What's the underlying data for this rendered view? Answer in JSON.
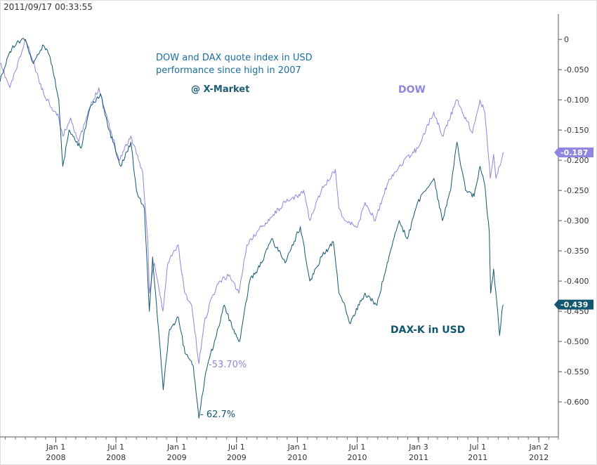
{
  "timestamp": "2011/09/17 00:33:55",
  "chart_data": {
    "type": "line",
    "title": "DOW and DAX quote index in USD",
    "subtitle": "performance since high in 2007",
    "brand": "@ X-Market",
    "y_ticks": [
      "0",
      "-0.050",
      "-0.100",
      "-0.150",
      "-0.200",
      "-0.250",
      "-0.300",
      "-0.350",
      "-0.400",
      "-0.450",
      "-0.500",
      "-0.550",
      "-0.600"
    ],
    "y_tick_values": [
      0,
      -0.05,
      -0.1,
      -0.15,
      -0.2,
      -0.25,
      -0.3,
      -0.35,
      -0.4,
      -0.45,
      -0.5,
      -0.55,
      -0.6
    ],
    "ylim": [
      -0.658,
      0.042
    ],
    "x_ticks": [
      {
        "line1": "Jan 1",
        "line2": "2008",
        "date": "2008-01-01"
      },
      {
        "line1": "Jul 1",
        "line2": "2008",
        "date": "2008-07-01"
      },
      {
        "line1": "Jan 1",
        "line2": "2009",
        "date": "2009-01-01"
      },
      {
        "line1": "Jul 1",
        "line2": "2009",
        "date": "2009-07-01"
      },
      {
        "line1": "Jan 1",
        "line2": "2010",
        "date": "2010-01-01"
      },
      {
        "line1": "Jul 1",
        "line2": "2010",
        "date": "2010-07-01"
      },
      {
        "line1": "Jan 3",
        "line2": "2011",
        "date": "2011-01-03"
      },
      {
        "line1": "Jul 1",
        "line2": "2011",
        "date": "2011-07-01"
      },
      {
        "line1": "Jan 2",
        "line2": "2012",
        "date": "2012-01-02"
      }
    ],
    "xlim": [
      "2007-07-16",
      "2012-03-01"
    ],
    "grid": false,
    "series": [
      {
        "name": "DOW",
        "color": "#8e86e0",
        "last_value_label": "-0.187",
        "points": [
          [
            "2007-07-16",
            -0.04
          ],
          [
            "2007-08-15",
            -0.08
          ],
          [
            "2007-10-01",
            -0.002
          ],
          [
            "2007-10-20",
            -0.03
          ],
          [
            "2007-11-25",
            -0.09
          ],
          [
            "2008-01-10",
            -0.13
          ],
          [
            "2008-01-22",
            -0.16
          ],
          [
            "2008-02-15",
            -0.13
          ],
          [
            "2008-03-10",
            -0.17
          ],
          [
            "2008-04-15",
            -0.11
          ],
          [
            "2008-05-10",
            -0.08
          ],
          [
            "2008-05-25",
            -0.11
          ],
          [
            "2008-06-15",
            -0.15
          ],
          [
            "2008-07-10",
            -0.2
          ],
          [
            "2008-08-15",
            -0.16
          ],
          [
            "2008-09-01",
            -0.19
          ],
          [
            "2008-09-20",
            -0.22
          ],
          [
            "2008-10-05",
            -0.33
          ],
          [
            "2008-10-10",
            -0.42
          ],
          [
            "2008-10-25",
            -0.37
          ],
          [
            "2008-11-20",
            -0.45
          ],
          [
            "2008-12-05",
            -0.37
          ],
          [
            "2009-01-05",
            -0.34
          ],
          [
            "2009-01-25",
            -0.42
          ],
          [
            "2009-02-15",
            -0.44
          ],
          [
            "2009-03-09",
            -0.537
          ],
          [
            "2009-03-25",
            -0.47
          ],
          [
            "2009-04-15",
            -0.43
          ],
          [
            "2009-05-10",
            -0.4
          ],
          [
            "2009-06-10",
            -0.39
          ],
          [
            "2009-07-08",
            -0.42
          ],
          [
            "2009-08-01",
            -0.34
          ],
          [
            "2009-09-15",
            -0.31
          ],
          [
            "2009-10-20",
            -0.29
          ],
          [
            "2009-11-25",
            -0.27
          ],
          [
            "2009-12-31",
            -0.26
          ],
          [
            "2010-01-20",
            -0.25
          ],
          [
            "2010-02-08",
            -0.3
          ],
          [
            "2010-03-15",
            -0.25
          ],
          [
            "2010-04-26",
            -0.215
          ],
          [
            "2010-05-07",
            -0.28
          ],
          [
            "2010-05-25",
            -0.3
          ],
          [
            "2010-07-02",
            -0.31
          ],
          [
            "2010-07-25",
            -0.27
          ],
          [
            "2010-08-25",
            -0.3
          ],
          [
            "2010-09-30",
            -0.24
          ],
          [
            "2010-11-05",
            -0.21
          ],
          [
            "2010-12-31",
            -0.18
          ],
          [
            "2011-02-18",
            -0.12
          ],
          [
            "2011-03-16",
            -0.16
          ],
          [
            "2011-04-29",
            -0.1
          ],
          [
            "2011-06-15",
            -0.155
          ],
          [
            "2011-07-08",
            -0.1
          ],
          [
            "2011-07-22",
            -0.12
          ],
          [
            "2011-08-08",
            -0.23
          ],
          [
            "2011-08-18",
            -0.19
          ],
          [
            "2011-08-25",
            -0.23
          ],
          [
            "2011-09-05",
            -0.21
          ],
          [
            "2011-09-16",
            -0.187
          ]
        ]
      },
      {
        "name": "DAX-K in USD",
        "color": "#12566e",
        "last_value_label": "-0.439",
        "points": [
          [
            "2007-07-16",
            -0.07
          ],
          [
            "2007-08-15",
            -0.02
          ],
          [
            "2007-09-05",
            -0.005
          ],
          [
            "2007-10-01",
            0.0
          ],
          [
            "2007-10-25",
            -0.04
          ],
          [
            "2007-11-25",
            -0.01
          ],
          [
            "2007-12-15",
            -0.03
          ],
          [
            "2008-01-10",
            -0.1
          ],
          [
            "2008-01-22",
            -0.21
          ],
          [
            "2008-02-10",
            -0.15
          ],
          [
            "2008-03-17",
            -0.18
          ],
          [
            "2008-04-15",
            -0.11
          ],
          [
            "2008-05-15",
            -0.09
          ],
          [
            "2008-06-10",
            -0.15
          ],
          [
            "2008-07-15",
            -0.21
          ],
          [
            "2008-08-15",
            -0.17
          ],
          [
            "2008-09-01",
            -0.25
          ],
          [
            "2008-09-25",
            -0.28
          ],
          [
            "2008-10-10",
            -0.45
          ],
          [
            "2008-10-20",
            -0.36
          ],
          [
            "2008-11-21",
            -0.58
          ],
          [
            "2008-12-10",
            -0.48
          ],
          [
            "2009-01-06",
            -0.46
          ],
          [
            "2009-01-26",
            -0.52
          ],
          [
            "2009-02-20",
            -0.54
          ],
          [
            "2009-03-09",
            -0.627
          ],
          [
            "2009-03-30",
            -0.55
          ],
          [
            "2009-04-25",
            -0.5
          ],
          [
            "2009-05-25",
            -0.44
          ],
          [
            "2009-06-20",
            -0.48
          ],
          [
            "2009-07-10",
            -0.5
          ],
          [
            "2009-08-10",
            -0.4
          ],
          [
            "2009-09-15",
            -0.37
          ],
          [
            "2009-10-15",
            -0.33
          ],
          [
            "2009-11-25",
            -0.37
          ],
          [
            "2010-01-10",
            -0.31
          ],
          [
            "2010-02-08",
            -0.4
          ],
          [
            "2010-03-15",
            -0.36
          ],
          [
            "2010-04-20",
            -0.335
          ],
          [
            "2010-05-07",
            -0.42
          ],
          [
            "2010-05-25",
            -0.44
          ],
          [
            "2010-06-08",
            -0.47
          ],
          [
            "2010-07-25",
            -0.42
          ],
          [
            "2010-08-30",
            -0.44
          ],
          [
            "2010-09-30",
            -0.37
          ],
          [
            "2010-11-05",
            -0.3
          ],
          [
            "2010-11-30",
            -0.33
          ],
          [
            "2010-12-31",
            -0.27
          ],
          [
            "2011-02-18",
            -0.23
          ],
          [
            "2011-03-16",
            -0.3
          ],
          [
            "2011-04-10",
            -0.25
          ],
          [
            "2011-04-29",
            -0.17
          ],
          [
            "2011-05-25",
            -0.25
          ],
          [
            "2011-06-20",
            -0.26
          ],
          [
            "2011-07-08",
            -0.21
          ],
          [
            "2011-07-22",
            -0.24
          ],
          [
            "2011-08-05",
            -0.32
          ],
          [
            "2011-08-09",
            -0.42
          ],
          [
            "2011-08-18",
            -0.38
          ],
          [
            "2011-08-25",
            -0.42
          ],
          [
            "2011-09-05",
            -0.49
          ],
          [
            "2011-09-12",
            -0.45
          ],
          [
            "2011-09-16",
            -0.439
          ]
        ]
      }
    ],
    "annotations": {
      "dow_label": "DOW",
      "dax_label": "DAX-K in USD",
      "dow_low": "-53.70%",
      "dax_low": "- 62.7%"
    }
  }
}
